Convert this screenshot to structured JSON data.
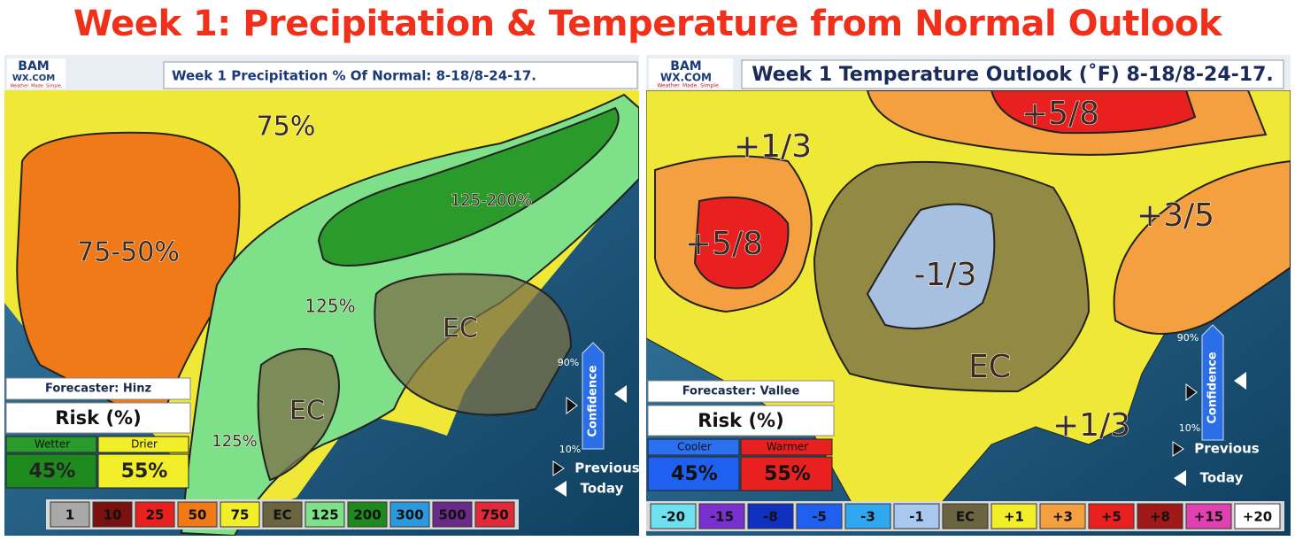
{
  "title": "Week 1: Precipitation & Temperature from Normal Outlook",
  "panels": [
    {
      "logo": {
        "mark": "BAM",
        "site": "WX.COM",
        "tagline": "Weather. Made. Simple."
      },
      "header": "Week 1 Precipitation % Of Normal: 8-18/8-24-17.",
      "regions": [
        "75%",
        "75-50%",
        "125-200%",
        "125%",
        "EC",
        "EC",
        "125%"
      ],
      "forecaster": "Forecaster: Hinz",
      "risk": {
        "title": "Risk (%)",
        "left": {
          "label": "Wetter",
          "value": "45%"
        },
        "right": {
          "label": "Drier",
          "value": "55%"
        }
      },
      "confidence": {
        "label": "Confidence",
        "high": "90%",
        "low": "10%",
        "previous": "Previous",
        "today": "Today"
      },
      "legend": [
        {
          "label": "1",
          "color": "#a9a9a9"
        },
        {
          "label": "10",
          "color": "#7a1010"
        },
        {
          "label": "25",
          "color": "#e82020"
        },
        {
          "label": "50",
          "color": "#f07a18"
        },
        {
          "label": "75",
          "color": "#f2ee2a"
        },
        {
          "label": "EC",
          "color": "#6b6440"
        },
        {
          "label": "125",
          "color": "#7fe08a"
        },
        {
          "label": "200",
          "color": "#1e8a1e"
        },
        {
          "label": "300",
          "color": "#2a9ae0"
        },
        {
          "label": "500",
          "color": "#6a2a8a"
        },
        {
          "label": "750",
          "color": "#e02a3a"
        }
      ]
    },
    {
      "logo": {
        "mark": "BAM",
        "site": "WX.COM",
        "tagline": "Weather. Made. Simple."
      },
      "header": "Week 1 Temperature Outlook (˚F) 8-18/8-24-17.",
      "regions": [
        "+5/8",
        "+1/3",
        "+5/8",
        "-1/3",
        "+3/5",
        "EC",
        "+1/3"
      ],
      "forecaster": "Forecaster: Vallee",
      "risk": {
        "title": "Risk (%)",
        "left": {
          "label": "Cooler",
          "value": "45%"
        },
        "right": {
          "label": "Warmer",
          "value": "55%"
        }
      },
      "confidence": {
        "label": "Confidence",
        "high": "90%",
        "low": "10%",
        "previous": "Previous",
        "today": "Today"
      },
      "legend": [
        {
          "label": "-20",
          "color": "#6fe0f0"
        },
        {
          "label": "-15",
          "color": "#7a30d0"
        },
        {
          "label": "-8",
          "color": "#1030c0"
        },
        {
          "label": "-5",
          "color": "#2060f0"
        },
        {
          "label": "-3",
          "color": "#30a8f0"
        },
        {
          "label": "-1",
          "color": "#a8c8f0"
        },
        {
          "label": "EC",
          "color": "#6b6440"
        },
        {
          "label": "+1",
          "color": "#f2ee2a"
        },
        {
          "label": "+3",
          "color": "#f5a040"
        },
        {
          "label": "+5",
          "color": "#e82020"
        },
        {
          "label": "+8",
          "color": "#a01818"
        },
        {
          "label": "+15",
          "color": "#e040b0"
        },
        {
          "label": "+20",
          "color": "#ffffff"
        }
      ]
    }
  ]
}
